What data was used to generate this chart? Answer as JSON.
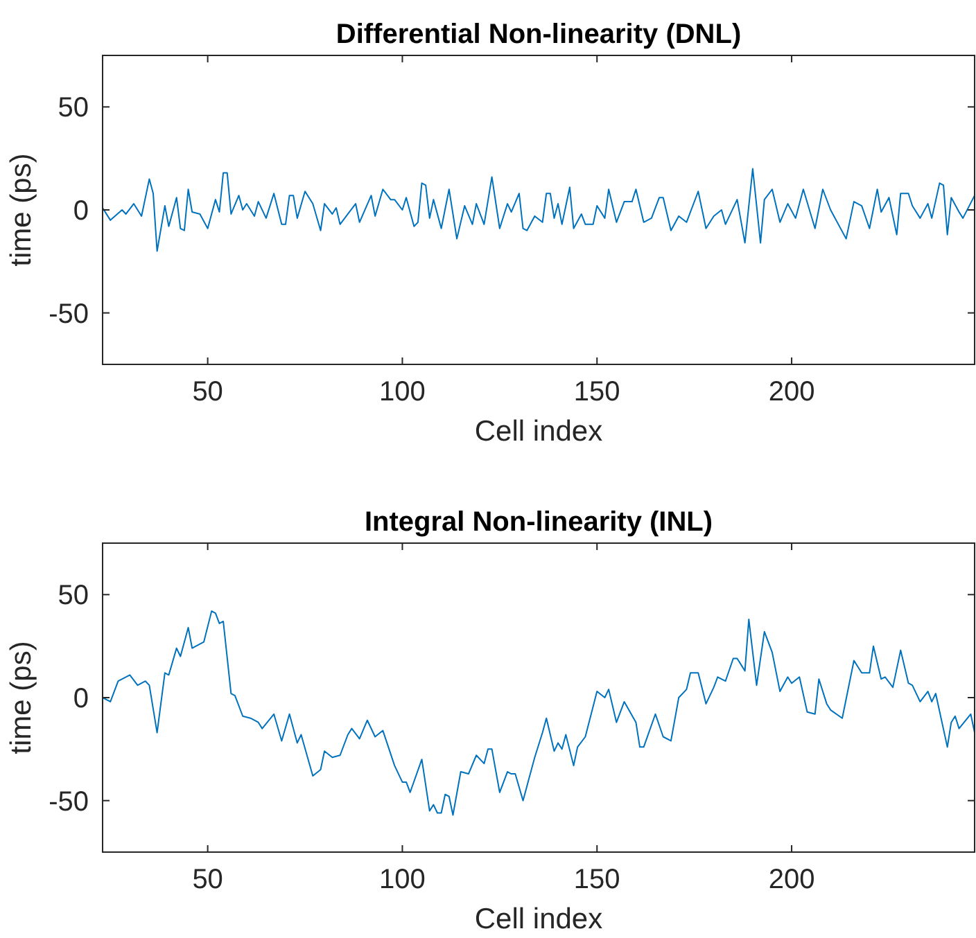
{
  "chart_data": [
    {
      "type": "line",
      "title": "Differential Non-linearity (DNL)",
      "xlabel": "Cell index",
      "ylabel": "time (ps)",
      "xlim": [
        23,
        247
      ],
      "ylim": [
        -75,
        75
      ],
      "xticks": [
        50,
        100,
        150,
        200
      ],
      "yticks": [
        -50,
        0,
        50
      ],
      "grid": false,
      "marker": "none",
      "line_style": "solid",
      "series": [
        {
          "color": "#0072bd",
          "x": [
            23,
            25,
            28,
            29,
            31,
            33,
            35,
            36,
            37,
            39,
            40,
            42,
            43,
            44,
            45,
            46,
            48,
            50,
            52,
            53,
            54,
            55,
            56,
            58,
            59,
            60,
            62,
            63,
            65,
            67,
            69,
            70,
            71,
            72,
            73,
            75,
            77,
            79,
            80,
            82,
            83,
            84,
            86,
            88,
            89,
            92,
            93,
            95,
            97,
            98,
            100,
            101,
            103,
            104,
            105,
            106,
            107,
            108,
            110,
            112,
            114,
            116,
            118,
            119,
            121,
            123,
            125,
            127,
            128,
            130,
            131,
            132,
            134,
            136,
            137,
            138,
            139,
            140,
            141,
            143,
            144,
            146,
            147,
            149,
            150,
            152,
            153,
            155,
            157,
            159,
            160,
            162,
            164,
            166,
            167,
            168,
            169,
            171,
            173,
            176,
            178,
            180,
            182,
            183,
            186,
            188,
            190,
            192,
            193,
            195,
            197,
            199,
            201,
            203,
            206,
            208,
            210,
            214,
            216,
            218,
            220,
            222,
            223,
            225,
            227,
            228,
            230,
            231,
            233,
            235,
            236,
            238,
            239,
            240,
            241,
            243,
            244,
            247
          ],
          "values": [
            1,
            -5,
            0,
            -2,
            3,
            -3,
            15,
            8,
            -20,
            2,
            -8,
            6,
            -9,
            -10,
            10,
            -1,
            -2,
            -9,
            5,
            -1,
            18,
            18,
            -2,
            7,
            0,
            3,
            -3,
            4,
            -4,
            8,
            -7,
            -7,
            7,
            7,
            -4,
            9,
            3,
            -10,
            3,
            -2,
            1,
            -7,
            -2,
            3,
            -6,
            7,
            -3,
            10,
            5,
            5,
            0,
            6,
            -8,
            -6,
            13,
            12,
            -4,
            5,
            -9,
            10,
            -14,
            2,
            -7,
            3,
            -7,
            16,
            -9,
            3,
            -1,
            8,
            -9,
            -10,
            -3,
            -6,
            8,
            8,
            -4,
            3,
            -7,
            11,
            -9,
            -2,
            -7,
            -7,
            2,
            -4,
            10,
            -6,
            4,
            4,
            10,
            -6,
            -4,
            6,
            6,
            -2,
            -10,
            -3,
            -6,
            9,
            -9,
            -3,
            0,
            -7,
            5,
            -16,
            20,
            -16,
            5,
            10,
            -6,
            3,
            -4,
            10,
            -9,
            10,
            0,
            -14,
            4,
            2,
            -9,
            10,
            -1,
            6,
            -12,
            8,
            8,
            2,
            -4,
            3,
            -4,
            13,
            12,
            -12,
            6,
            -1,
            -4,
            7
          ]
        }
      ]
    },
    {
      "type": "line",
      "title": "Integral Non-linearity (INL)",
      "xlabel": "Cell index",
      "ylabel": "time (ps)",
      "xlim": [
        23,
        247
      ],
      "ylim": [
        -75,
        75
      ],
      "xticks": [
        50,
        100,
        150,
        200
      ],
      "yticks": [
        -50,
        0,
        50
      ],
      "grid": false,
      "marker": "none",
      "line_style": "solid",
      "series": [
        {
          "color": "#0072bd",
          "x": [
            23,
            25,
            27,
            30,
            32,
            34,
            35,
            37,
            39,
            40,
            42,
            43,
            45,
            46,
            48,
            49,
            51,
            52,
            53,
            54,
            56,
            57,
            59,
            61,
            63,
            64,
            67,
            69,
            71,
            73,
            74,
            77,
            79,
            80,
            82,
            84,
            86,
            87,
            89,
            91,
            93,
            95,
            98,
            100,
            101,
            102,
            105,
            107,
            108,
            109,
            110,
            111,
            112,
            113,
            115,
            117,
            119,
            121,
            122,
            123,
            125,
            127,
            128,
            129,
            131,
            134,
            136,
            137,
            139,
            140,
            141,
            142,
            144,
            145,
            147,
            150,
            152,
            153,
            155,
            157,
            160,
            161,
            162,
            165,
            167,
            169,
            171,
            173,
            174,
            176,
            178,
            180,
            181,
            183,
            185,
            186,
            188,
            189,
            191,
            193,
            195,
            197,
            199,
            200,
            202,
            204,
            206,
            207,
            209,
            210,
            213,
            216,
            218,
            220,
            221,
            223,
            224,
            226,
            228,
            230,
            231,
            233,
            235,
            236,
            237,
            240,
            241,
            242,
            243,
            246,
            247
          ],
          "values": [
            0,
            -2,
            8,
            11,
            6,
            8,
            6,
            -17,
            12,
            11,
            24,
            20,
            34,
            24,
            26,
            27,
            42,
            41,
            36,
            37,
            2,
            1,
            -9,
            -10,
            -12,
            -15,
            -8,
            -21,
            -8,
            -22,
            -18,
            -38,
            -35,
            -26,
            -29,
            -28,
            -18,
            -15,
            -20,
            -11,
            -19,
            -16,
            -33,
            -41,
            -41,
            -46,
            -30,
            -55,
            -52,
            -56,
            -56,
            -47,
            -48,
            -57,
            -36,
            -37,
            -28,
            -32,
            -25,
            -25,
            -46,
            -36,
            -37,
            -37,
            -50,
            -29,
            -17,
            -10,
            -26,
            -22,
            -25,
            -18,
            -33,
            -24,
            -19,
            3,
            0,
            4,
            -12,
            -2,
            -12,
            -24,
            -24,
            -8,
            -19,
            -21,
            0,
            4,
            12,
            12,
            -3,
            5,
            10,
            8,
            19,
            19,
            13,
            38,
            6,
            32,
            22,
            3,
            10,
            7,
            10,
            -7,
            -8,
            9,
            -3,
            -6,
            -10,
            18,
            12,
            12,
            25,
            9,
            10,
            5,
            23,
            7,
            6,
            -2,
            3,
            -2,
            2,
            -24,
            -12,
            -9,
            -15,
            -8,
            -17
          ]
        }
      ]
    }
  ]
}
